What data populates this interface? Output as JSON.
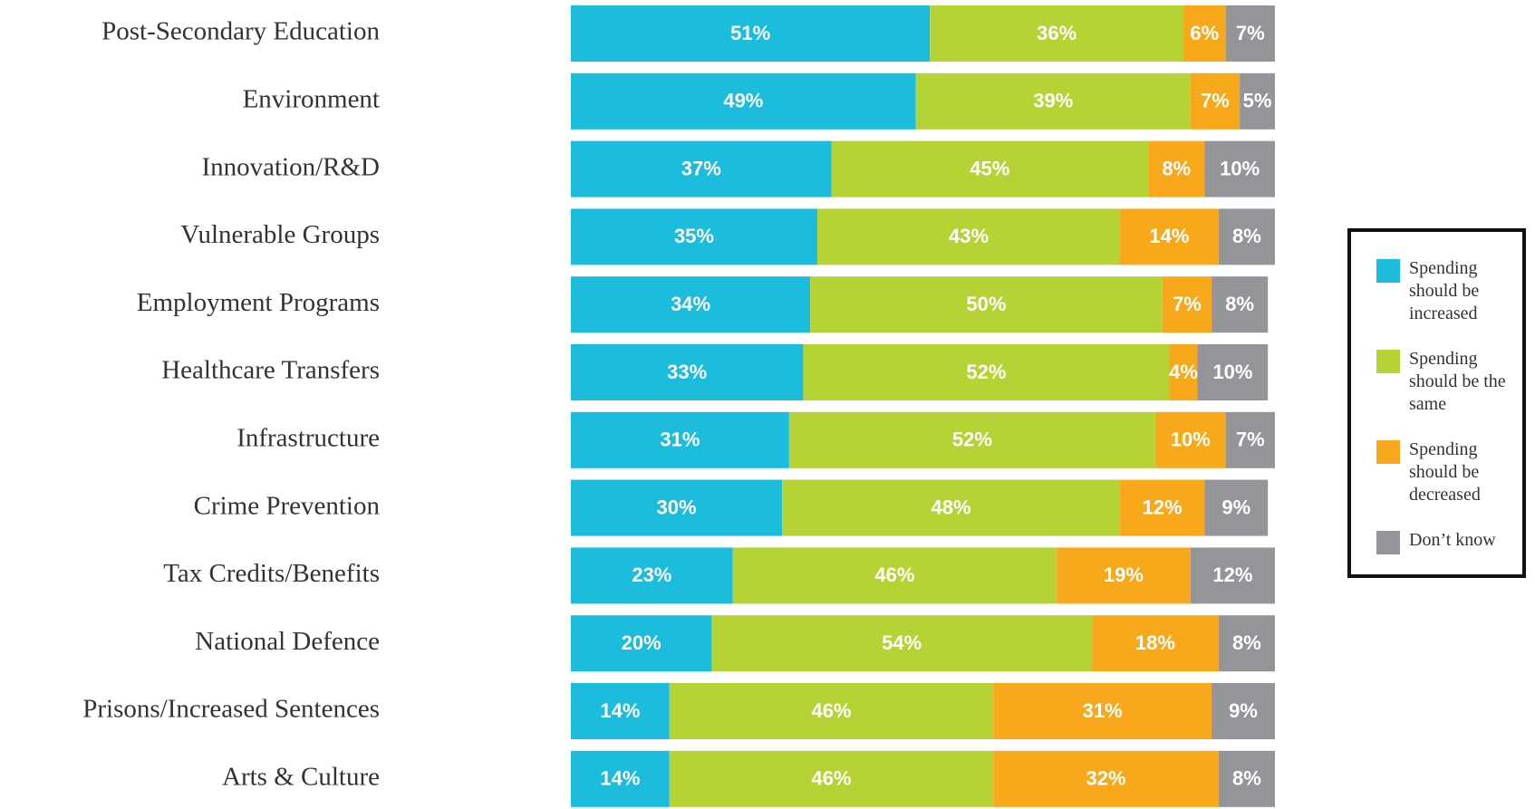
{
  "chart_data": {
    "type": "stacked-bar",
    "categories": [
      "Post-Secondary Education",
      "Environment",
      "Innovation/R&D",
      "Vulnerable Groups",
      "Employment Programs",
      "Healthcare Transfers",
      "Infrastructure",
      "Crime Prevention",
      "Tax Credits/Benefits",
      "National Defence",
      "Prisons/Increased Sentences",
      "Arts & Culture"
    ],
    "xlim": [
      0,
      100
    ],
    "series": [
      {
        "name": "Spending should be increased",
        "color": "#1bbcdc",
        "values": [
          51,
          49,
          37,
          35,
          34,
          33,
          31,
          30,
          23,
          20,
          14,
          14
        ],
        "value_labels": [
          "51%",
          "49%",
          "37%",
          "35%",
          "34%",
          "33%",
          "31%",
          "30%",
          "23%",
          "20%",
          "14%",
          "14%"
        ]
      },
      {
        "name": "Spending should be the same",
        "color": "#b5d334",
        "values": [
          36,
          39,
          45,
          43,
          50,
          52,
          52,
          48,
          46,
          54,
          46,
          46
        ],
        "value_labels": [
          "36%",
          "39%",
          "45%",
          "43%",
          "50%",
          "52%",
          "52%",
          "48%",
          "46%",
          "54%",
          "46%",
          "46%"
        ]
      },
      {
        "name": "Spending should be decreased",
        "color": "#f7a81b",
        "values": [
          6,
          7,
          8,
          14,
          7,
          4,
          10,
          12,
          19,
          18,
          31,
          32
        ],
        "value_labels": [
          "6%",
          "7%",
          "8%",
          "14%",
          "7%",
          "4%",
          "10%",
          "12%",
          "19%",
          "18%",
          "31%",
          "32%"
        ]
      },
      {
        "name": "Don’t know",
        "color": "#939598",
        "values": [
          7,
          5,
          10,
          8,
          8,
          10,
          7,
          9,
          12,
          8,
          9,
          8
        ],
        "value_labels": [
          "7%",
          "5%",
          "10%",
          "8%",
          "8%",
          "10%",
          "7%",
          "9%",
          "12%",
          "8%",
          "9%",
          "8%"
        ]
      }
    ]
  }
}
